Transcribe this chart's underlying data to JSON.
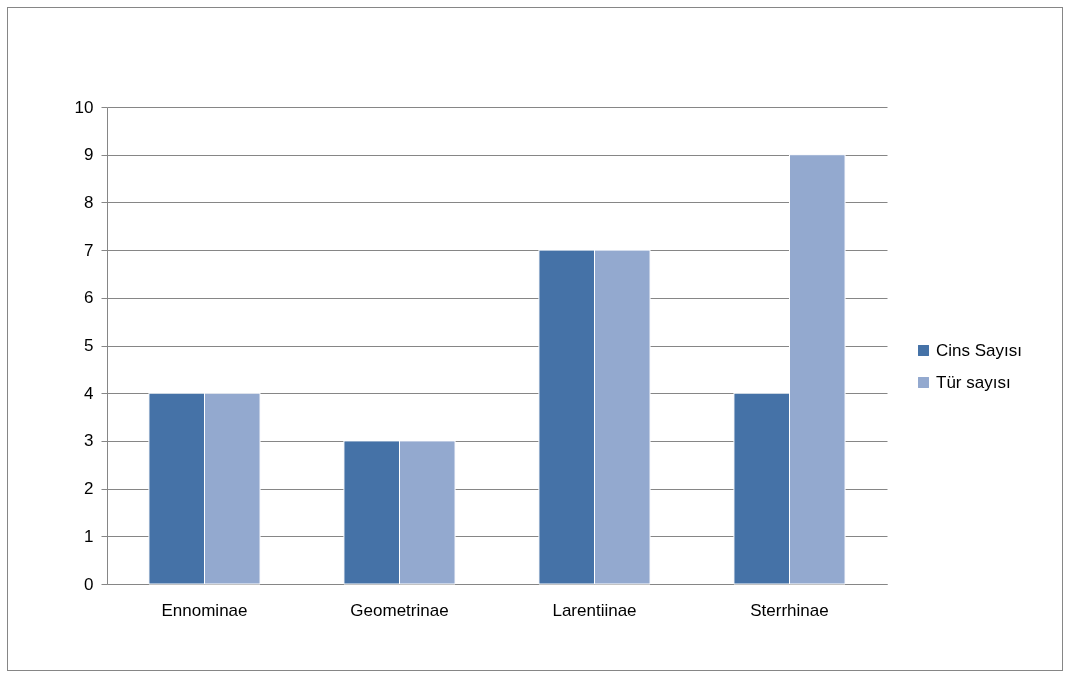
{
  "chart_data": {
    "type": "bar",
    "categories": [
      "Ennominae",
      "Geometrinae",
      "Larentiinae",
      "Sterrhinae"
    ],
    "series": [
      {
        "name": "Cins Sayısı",
        "color": "#4572a7",
        "values": [
          4,
          3,
          7,
          4
        ]
      },
      {
        "name": "Tür sayısı",
        "color": "#93a9cf",
        "values": [
          4,
          3,
          7,
          9
        ]
      }
    ],
    "ylim": [
      0,
      10
    ],
    "yticks": [
      0,
      1,
      2,
      3,
      4,
      5,
      6,
      7,
      8,
      9,
      10
    ],
    "grid": "y",
    "legend": "right"
  }
}
